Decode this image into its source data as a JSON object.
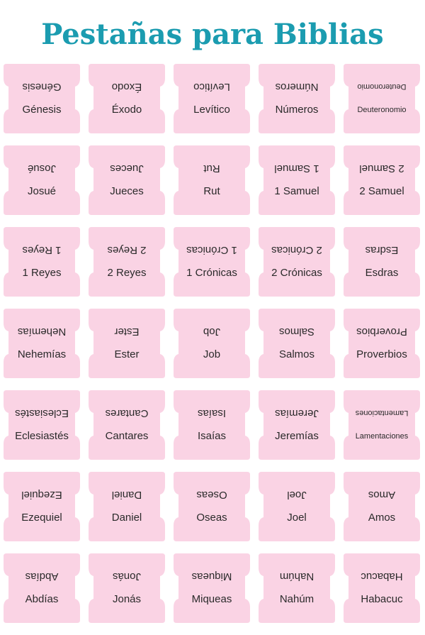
{
  "title": "Pestañas para Biblias",
  "tabs": [
    [
      "Génesis",
      "Éxodo",
      "Levítico",
      "Números",
      "Deuteronomio"
    ],
    [
      "Josué",
      "Jueces",
      "Rut",
      "1 Samuel",
      "2 Samuel"
    ],
    [
      "1 Reyes",
      "2 Reyes",
      "1 Crónicas",
      "2 Crónicas",
      "Esdras"
    ],
    [
      "Nehemías",
      "Ester",
      "Job",
      "Salmos",
      "Proverbios"
    ],
    [
      "Eclesiastés",
      "Cantares",
      "Isaías",
      "Jeremías",
      "Lamentaciones"
    ],
    [
      "Ezequiel",
      "Daniel",
      "Oseas",
      "Joel",
      "Amos"
    ],
    [
      "Abdías",
      "Jonás",
      "Miqueas",
      "Nahúm",
      "Habacuc"
    ]
  ]
}
